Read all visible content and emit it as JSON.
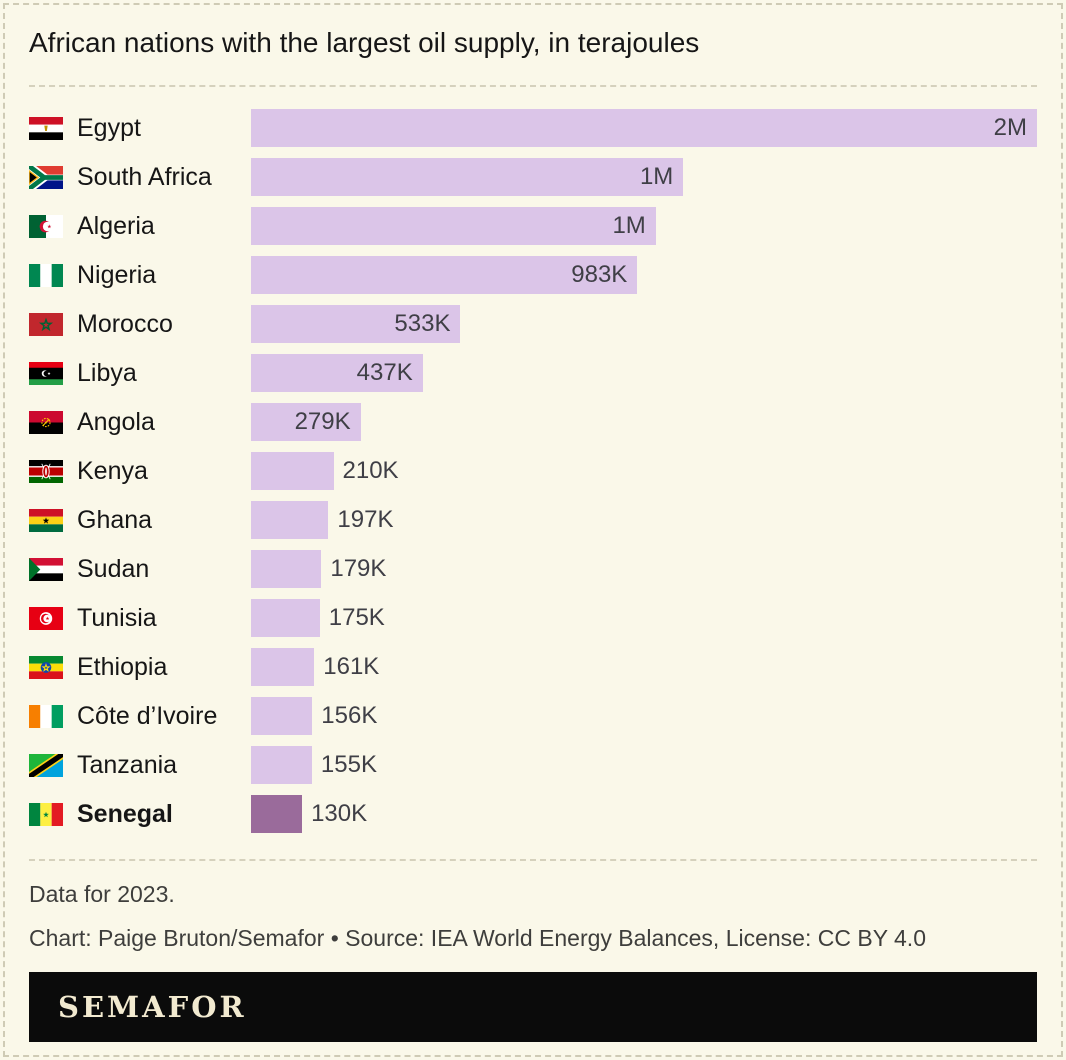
{
  "title": "African nations with the largest oil supply, in terajoules",
  "chart_data": {
    "type": "bar",
    "orientation": "horizontal",
    "unit": "terajoules",
    "xlim": [
      0,
      2000000
    ],
    "bar_color": "#dbc5e8",
    "highlight_color": "#9a6b9b",
    "rows": [
      {
        "country": "Egypt",
        "flag": "flag-egypt",
        "value": 2000000,
        "label": "2M",
        "highlight": false
      },
      {
        "country": "South Africa",
        "flag": "flag-south-africa",
        "value": 1100000,
        "label": "1M",
        "highlight": false
      },
      {
        "country": "Algeria",
        "flag": "flag-algeria",
        "value": 1030000,
        "label": "1M",
        "highlight": false
      },
      {
        "country": "Nigeria",
        "flag": "flag-nigeria",
        "value": 983000,
        "label": "983K",
        "highlight": false
      },
      {
        "country": "Morocco",
        "flag": "flag-morocco",
        "value": 533000,
        "label": "533K",
        "highlight": false
      },
      {
        "country": "Libya",
        "flag": "flag-libya",
        "value": 437000,
        "label": "437K",
        "highlight": false
      },
      {
        "country": "Angola",
        "flag": "flag-angola",
        "value": 279000,
        "label": "279K",
        "highlight": false
      },
      {
        "country": "Kenya",
        "flag": "flag-kenya",
        "value": 210000,
        "label": "210K",
        "highlight": false
      },
      {
        "country": "Ghana",
        "flag": "flag-ghana",
        "value": 197000,
        "label": "197K",
        "highlight": false
      },
      {
        "country": "Sudan",
        "flag": "flag-sudan",
        "value": 179000,
        "label": "179K",
        "highlight": false
      },
      {
        "country": "Tunisia",
        "flag": "flag-tunisia",
        "value": 175000,
        "label": "175K",
        "highlight": false
      },
      {
        "country": "Ethiopia",
        "flag": "flag-ethiopia",
        "value": 161000,
        "label": "161K",
        "highlight": false
      },
      {
        "country": "Côte d’Ivoire",
        "flag": "flag-cote-divoire",
        "value": 156000,
        "label": "156K",
        "highlight": false
      },
      {
        "country": "Tanzania",
        "flag": "flag-tanzania",
        "value": 155000,
        "label": "155K",
        "highlight": false
      },
      {
        "country": "Senegal",
        "flag": "flag-senegal",
        "value": 130000,
        "label": "130K",
        "highlight": true
      }
    ]
  },
  "footer": {
    "note": "Data for 2023.",
    "credit": "Chart: Paige Bruton/Semafor • Source: IEA World Energy Balances, License: CC BY 4.0"
  },
  "logo": {
    "text": "SEMAFOR"
  }
}
